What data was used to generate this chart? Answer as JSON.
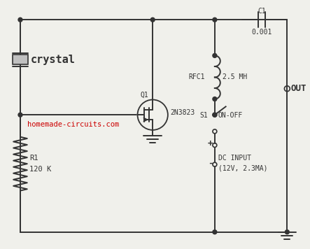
{
  "bg_color": "#f0f0eb",
  "line_color": "#333333",
  "text_color": "#333333",
  "red_color": "#cc0000",
  "labels": {
    "crystal": "crystal",
    "R1": "R1",
    "R1_val": "120 K",
    "Q1": "Q1",
    "fet": "2N3823",
    "RFC1": "RFC1",
    "RFC1_val": "2.5 MH",
    "C1": "C1",
    "C1_val": "0.001",
    "S1": "S1",
    "sw": "ON-OFF",
    "plus": "+",
    "minus": "-",
    "dc1": "DC INPUT",
    "dc2": "(12V, 2.3MA)",
    "out": "OUT",
    "web": "homemade-circuits.com"
  }
}
